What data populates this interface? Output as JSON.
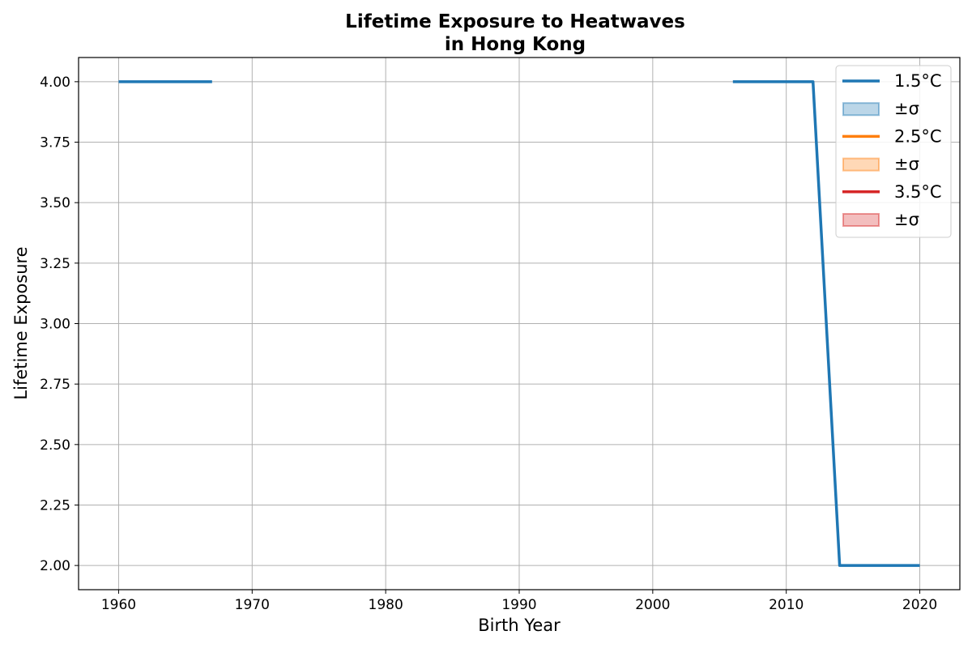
{
  "chart_data": {
    "type": "line",
    "title_lines": [
      "Lifetime Exposure to Heatwaves",
      "in Hong Kong"
    ],
    "xlabel": "Birth Year",
    "ylabel": "Lifetime Exposure",
    "xlim": [
      1957,
      2023
    ],
    "ylim": [
      1.9,
      4.1
    ],
    "xticks": [
      1960,
      1970,
      1980,
      1990,
      2000,
      2010,
      2020
    ],
    "yticks": [
      2.0,
      2.25,
      2.5,
      2.75,
      3.0,
      3.25,
      3.5,
      3.75,
      4.0
    ],
    "grid": true,
    "legend_position": "top-right",
    "series": [
      {
        "name": "1.5°C",
        "color": "#1f77b4",
        "segments": [
          [
            [
              1960,
              4.0
            ],
            [
              1967,
              4.0
            ]
          ],
          [
            [
              2006,
              4.0
            ],
            [
              2012,
              4.0
            ],
            [
              2014,
              2.0
            ],
            [
              2020,
              2.0
            ]
          ]
        ]
      },
      {
        "name": "2.5°C",
        "color": "#ff7f0e",
        "segments": []
      },
      {
        "name": "3.5°C",
        "color": "#d62728",
        "segments": []
      }
    ],
    "legend": [
      {
        "kind": "line",
        "label": "1.5°C",
        "color": "#1f77b4"
      },
      {
        "kind": "band",
        "label": "±σ",
        "color": "#1f77b4"
      },
      {
        "kind": "line",
        "label": "2.5°C",
        "color": "#ff7f0e"
      },
      {
        "kind": "band",
        "label": "±σ",
        "color": "#ff7f0e"
      },
      {
        "kind": "line",
        "label": "3.5°C",
        "color": "#d62728"
      },
      {
        "kind": "band",
        "label": "±σ",
        "color": "#d62728"
      }
    ]
  }
}
